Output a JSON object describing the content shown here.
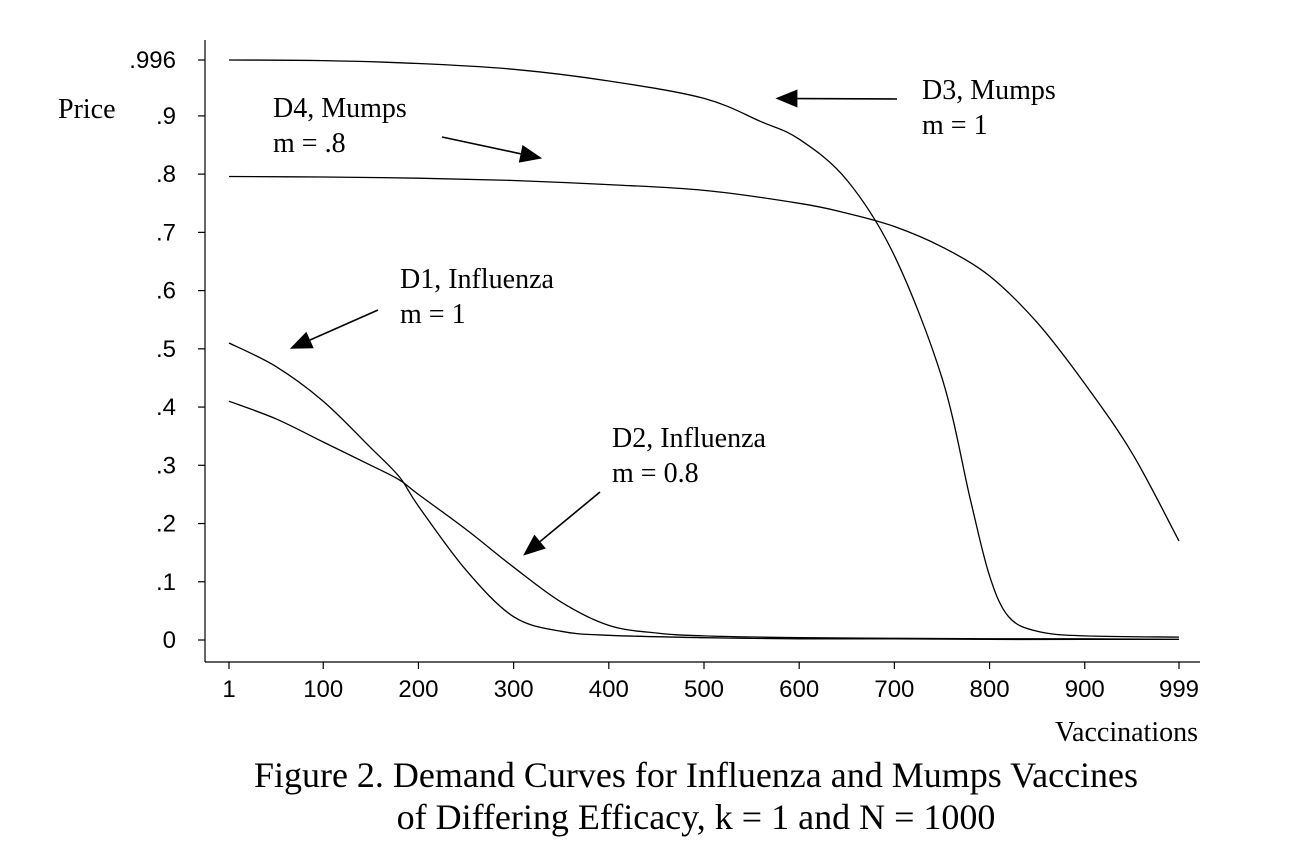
{
  "chart_data": {
    "type": "line",
    "title": "",
    "xlabel": "Vaccinations",
    "ylabel": "Price",
    "xlim": [
      1,
      999
    ],
    "ylim": [
      0,
      0.996
    ],
    "x_ticks": [
      {
        "value": 1,
        "label": "1"
      },
      {
        "value": 100,
        "label": "100"
      },
      {
        "value": 200,
        "label": "200"
      },
      {
        "value": 300,
        "label": "300"
      },
      {
        "value": 400,
        "label": "400"
      },
      {
        "value": 500,
        "label": "500"
      },
      {
        "value": 600,
        "label": "600"
      },
      {
        "value": 700,
        "label": "700"
      },
      {
        "value": 800,
        "label": "800"
      },
      {
        "value": 900,
        "label": "900"
      },
      {
        "value": 999,
        "label": "999"
      }
    ],
    "y_ticks": [
      {
        "value": 0,
        "label": "0"
      },
      {
        "value": 0.1,
        "label": ".1"
      },
      {
        "value": 0.2,
        "label": ".2"
      },
      {
        "value": 0.3,
        "label": ".3"
      },
      {
        "value": 0.4,
        "label": ".4"
      },
      {
        "value": 0.5,
        "label": ".5"
      },
      {
        "value": 0.6,
        "label": ".6"
      },
      {
        "value": 0.7,
        "label": ".7"
      },
      {
        "value": 0.8,
        "label": ".8"
      },
      {
        "value": 0.9,
        "label": ".9"
      },
      {
        "value": 0.996,
        "label": ".996"
      }
    ],
    "grid": false,
    "series": [
      {
        "x": [
          1,
          50,
          100,
          150,
          180,
          200,
          250,
          300,
          350,
          400,
          500,
          600,
          700,
          800,
          900,
          999
        ],
        "y": [
          0.51,
          0.47,
          0.41,
          0.33,
          0.28,
          0.23,
          0.12,
          0.04,
          0.015,
          0.008,
          0.004,
          0.002,
          0.002,
          0.001,
          0.001,
          0.001
        ]
      },
      {
        "x": [
          1,
          50,
          100,
          150,
          180,
          200,
          250,
          300,
          350,
          400,
          450,
          500,
          600,
          700,
          800,
          900,
          999
        ],
        "y": [
          0.41,
          0.38,
          0.34,
          0.3,
          0.275,
          0.25,
          0.19,
          0.125,
          0.065,
          0.025,
          0.012,
          0.007,
          0.004,
          0.003,
          0.002,
          0.002,
          0.001
        ]
      },
      {
        "x": [
          1,
          100,
          200,
          300,
          400,
          500,
          560,
          600,
          650,
          700,
          750,
          780,
          800,
          820,
          850,
          900,
          999
        ],
        "y": [
          0.996,
          0.995,
          0.99,
          0.98,
          0.96,
          0.93,
          0.89,
          0.86,
          0.79,
          0.66,
          0.45,
          0.24,
          0.11,
          0.04,
          0.015,
          0.007,
          0.005
        ]
      },
      {
        "x": [
          1,
          100,
          200,
          300,
          400,
          500,
          600,
          650,
          700,
          750,
          800,
          850,
          900,
          950,
          999
        ],
        "y": [
          0.796,
          0.795,
          0.793,
          0.789,
          0.782,
          0.772,
          0.75,
          0.733,
          0.71,
          0.675,
          0.625,
          0.545,
          0.44,
          0.32,
          0.17
        ]
      }
    ],
    "annotations": [
      {
        "lines": [
          "D1, Influenza",
          "m = 1"
        ],
        "arrow_to": {
          "x": 65,
          "y": 0.5
        }
      },
      {
        "lines": [
          "D2, Influenza",
          "m = 0.8"
        ],
        "arrow_to": {
          "x": 310,
          "y": 0.145
        }
      },
      {
        "lines": [
          "D3, Mumps",
          "m = 1"
        ],
        "arrow_to": {
          "x": 575,
          "y": 0.93
        }
      },
      {
        "lines": [
          "D4, Mumps",
          "m = .8"
        ],
        "arrow_to": {
          "x": 330,
          "y": 0.827
        }
      }
    ]
  },
  "caption": {
    "line1": "Figure 2.  Demand Curves for Influenza and Mumps Vaccines",
    "line2": "of Differing Efficacy, k = 1 and N = 1000"
  }
}
